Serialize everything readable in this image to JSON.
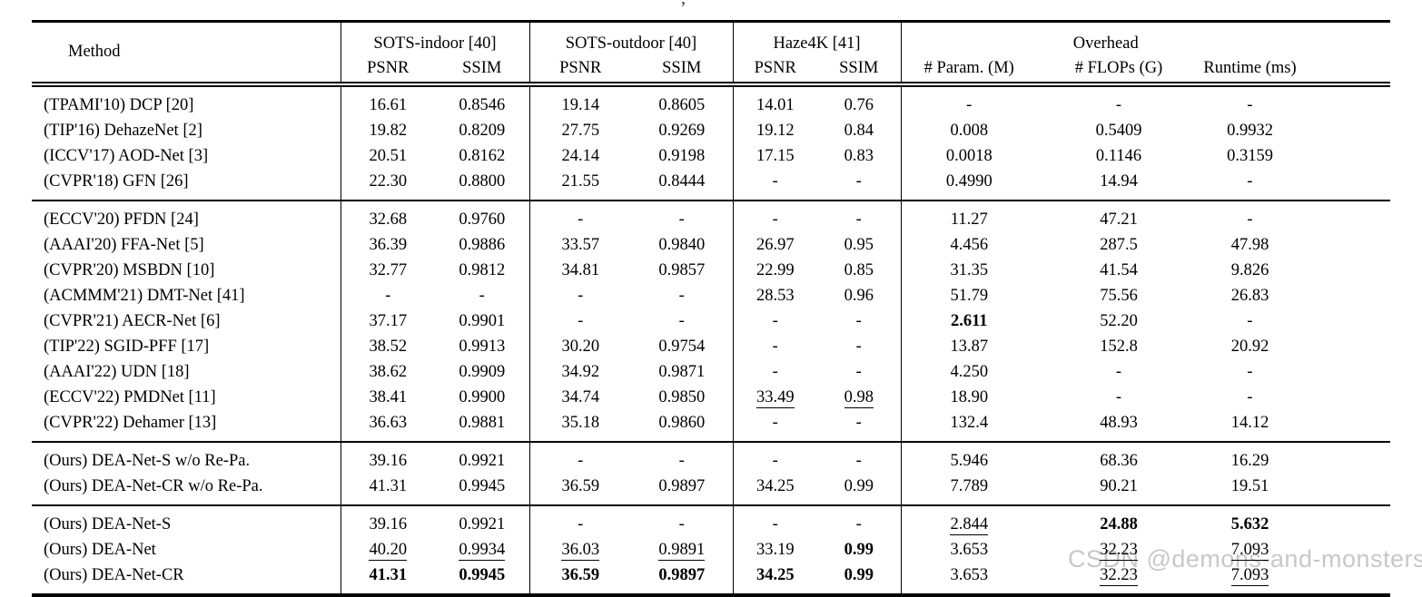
{
  "page": {
    "background": "#ffffff",
    "text_color": "#000000"
  },
  "caption_fragment": ",",
  "watermark": {
    "text": "CSDN @demons-and-monsters",
    "color": "#c8c8c8"
  },
  "table": {
    "header_method": "Method",
    "groups": [
      {
        "label": "SOTS-indoor [40]",
        "sub": [
          "PSNR",
          "SSIM"
        ]
      },
      {
        "label": "SOTS-outdoor [40]",
        "sub": [
          "PSNR",
          "SSIM"
        ]
      },
      {
        "label": "Haze4K [41]",
        "sub": [
          "PSNR",
          "SSIM"
        ]
      },
      {
        "label": "Overhead",
        "sub": [
          "# Param. (M)",
          "# FLOPs (G)",
          "Runtime (ms)"
        ]
      }
    ],
    "sections": [
      {
        "rows": [
          {
            "method": "(TPAMI'10) DCP [20]",
            "cells": [
              "16.61",
              "0.8546",
              "19.14",
              "0.8605",
              "14.01",
              "0.76",
              "-",
              "-",
              "-"
            ]
          },
          {
            "method": "(TIP'16) DehazeNet [2]",
            "cells": [
              "19.82",
              "0.8209",
              "27.75",
              "0.9269",
              "19.12",
              "0.84",
              "0.008",
              "0.5409",
              "0.9932"
            ]
          },
          {
            "method": "(ICCV'17) AOD-Net [3]",
            "cells": [
              "20.51",
              "0.8162",
              "24.14",
              "0.9198",
              "17.15",
              "0.83",
              "0.0018",
              "0.1146",
              "0.3159"
            ]
          },
          {
            "method": "(CVPR'18) GFN [26]",
            "cells": [
              "22.30",
              "0.8800",
              "21.55",
              "0.8444",
              "-",
              "-",
              "0.4990",
              "14.94",
              "-"
            ]
          }
        ]
      },
      {
        "rows": [
          {
            "method": "(ECCV'20) PFDN [24]",
            "cells": [
              "32.68",
              "0.9760",
              "-",
              "-",
              "-",
              "-",
              "11.27",
              "47.21",
              "-"
            ]
          },
          {
            "method": "(AAAI'20) FFA-Net [5]",
            "cells": [
              "36.39",
              "0.9886",
              "33.57",
              "0.9840",
              "26.97",
              "0.95",
              "4.456",
              "287.5",
              "47.98"
            ]
          },
          {
            "method": "(CVPR'20) MSBDN [10]",
            "cells": [
              "32.77",
              "0.9812",
              "34.81",
              "0.9857",
              "22.99",
              "0.85",
              "31.35",
              "41.54",
              "9.826"
            ]
          },
          {
            "method": "(ACMMM'21) DMT-Net [41]",
            "cells": [
              "-",
              "-",
              "-",
              "-",
              "28.53",
              "0.96",
              "51.79",
              "75.56",
              "26.83"
            ]
          },
          {
            "method": "(CVPR'21) AECR-Net [6]",
            "cells": [
              "37.17",
              "0.9901",
              "-",
              "-",
              "-",
              "-",
              {
                "t": "2.611",
                "b": true
              },
              "52.20",
              "-"
            ]
          },
          {
            "method": "(TIP'22) SGID-PFF [17]",
            "cells": [
              "38.52",
              "0.9913",
              "30.20",
              "0.9754",
              "-",
              "-",
              "13.87",
              "152.8",
              "20.92"
            ]
          },
          {
            "method": "(AAAI'22) UDN [18]",
            "cells": [
              "38.62",
              "0.9909",
              "34.92",
              "0.9871",
              "-",
              "-",
              "4.250",
              "-",
              "-"
            ]
          },
          {
            "method": "(ECCV'22) PMDNet [11]",
            "cells": [
              "38.41",
              "0.9900",
              "34.74",
              "0.9850",
              {
                "t": "33.49",
                "u": true
              },
              {
                "t": "0.98",
                "u": true
              },
              "18.90",
              "-",
              "-"
            ]
          },
          {
            "method": "(CVPR'22) Dehamer [13]",
            "cells": [
              "36.63",
              "0.9881",
              "35.18",
              "0.9860",
              "-",
              "-",
              "132.4",
              "48.93",
              "14.12"
            ]
          }
        ]
      },
      {
        "rows": [
          {
            "method": "(Ours) DEA-Net-S w/o Re-Pa.",
            "cells": [
              "39.16",
              "0.9921",
              "-",
              "-",
              "-",
              "-",
              "5.946",
              "68.36",
              "16.29"
            ]
          },
          {
            "method": "(Ours) DEA-Net-CR w/o Re-Pa.",
            "cells": [
              "41.31",
              "0.9945",
              "36.59",
              "0.9897",
              "34.25",
              "0.99",
              "7.789",
              "90.21",
              "19.51"
            ]
          }
        ]
      },
      {
        "rows": [
          {
            "method": "(Ours) DEA-Net-S",
            "cells": [
              "39.16",
              "0.9921",
              "-",
              "-",
              "-",
              "-",
              {
                "t": "2.844",
                "u": true
              },
              {
                "t": "24.88",
                "b": true
              },
              {
                "t": "5.632",
                "b": true
              }
            ]
          },
          {
            "method": "(Ours) DEA-Net",
            "cells": [
              {
                "t": "40.20",
                "u": true
              },
              {
                "t": "0.9934",
                "u": true
              },
              {
                "t": "36.03",
                "u": true
              },
              {
                "t": "0.9891",
                "u": true
              },
              "33.19",
              {
                "t": "0.99",
                "b": true
              },
              "3.653",
              {
                "t": "32.23",
                "u": true
              },
              {
                "t": "7.093",
                "u": true
              }
            ]
          },
          {
            "method": "(Ours) DEA-Net-CR",
            "cells": [
              {
                "t": "41.31",
                "b": true
              },
              {
                "t": "0.9945",
                "b": true
              },
              {
                "t": "36.59",
                "b": true
              },
              {
                "t": "0.9897",
                "b": true
              },
              {
                "t": "34.25",
                "b": true
              },
              {
                "t": "0.99",
                "b": true
              },
              "3.653",
              {
                "t": "32.23",
                "u": true
              },
              {
                "t": "7.093",
                "u": true
              }
            ]
          }
        ]
      }
    ]
  }
}
